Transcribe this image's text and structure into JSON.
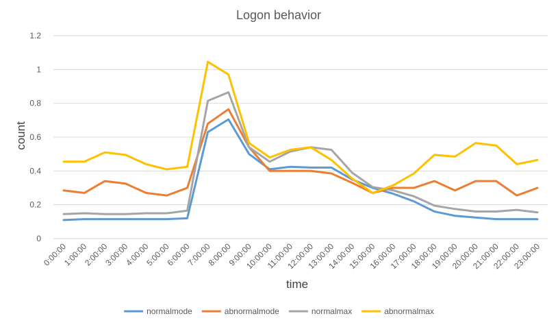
{
  "chart_data": {
    "type": "line",
    "title": "Logon behavior",
    "xlabel": "time",
    "ylabel": "count",
    "ylim": [
      0,
      1.2
    ],
    "yticks": [
      "0",
      "0.2",
      "0.4",
      "0.6",
      "0.8",
      "1",
      "1.2"
    ],
    "grid": true,
    "legend_position": "bottom",
    "categories": [
      "0:00:00",
      "1:00:00",
      "2:00:00",
      "3:00:00",
      "4:00:00",
      "5:00:00",
      "6:00:00",
      "7:00:00",
      "8:00:00",
      "9:00:00",
      "10:00:00",
      "11:00:00",
      "12:00:00",
      "13:00:00",
      "14:00:00",
      "15:00:00",
      "16:00:00",
      "17:00:00",
      "18:00:00",
      "19:00:00",
      "20:00:00",
      "21:00:00",
      "22:00:00",
      "23:00:00"
    ],
    "series": [
      {
        "name": "normalmode",
        "color": "#5b9bd5",
        "values": [
          0.11,
          0.115,
          0.115,
          0.115,
          0.115,
          0.115,
          0.12,
          0.63,
          0.705,
          0.5,
          0.41,
          0.425,
          0.42,
          0.42,
          0.35,
          0.3,
          0.265,
          0.22,
          0.16,
          0.135,
          0.125,
          0.115,
          0.115,
          0.115
        ]
      },
      {
        "name": "abnormalmode",
        "color": "#ed7d31",
        "values": [
          0.285,
          0.27,
          0.34,
          0.325,
          0.27,
          0.255,
          0.3,
          0.68,
          0.765,
          0.54,
          0.4,
          0.4,
          0.4,
          0.385,
          0.33,
          0.27,
          0.3,
          0.3,
          0.34,
          0.285,
          0.34,
          0.34,
          0.255,
          0.3
        ]
      },
      {
        "name": "normalmax",
        "color": "#a5a5a5",
        "values": [
          0.145,
          0.15,
          0.145,
          0.145,
          0.15,
          0.15,
          0.165,
          0.815,
          0.865,
          0.54,
          0.455,
          0.515,
          0.54,
          0.525,
          0.39,
          0.305,
          0.285,
          0.25,
          0.195,
          0.175,
          0.16,
          0.16,
          0.17,
          0.155
        ]
      },
      {
        "name": "abnormalmax",
        "color": "#ffc000",
        "values": [
          0.455,
          0.455,
          0.51,
          0.495,
          0.44,
          0.41,
          0.425,
          1.045,
          0.97,
          0.565,
          0.48,
          0.525,
          0.54,
          0.465,
          0.355,
          0.27,
          0.315,
          0.385,
          0.495,
          0.485,
          0.565,
          0.55,
          0.44,
          0.465
        ]
      }
    ]
  }
}
